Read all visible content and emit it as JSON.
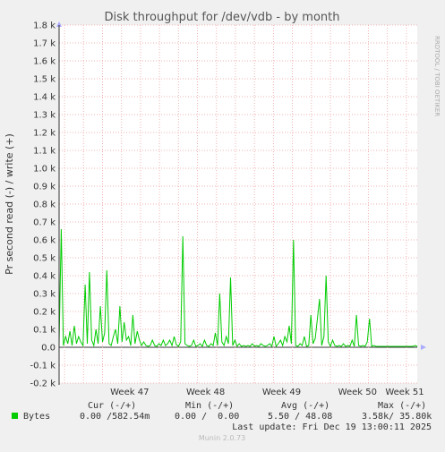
{
  "chart_data": {
    "type": "line",
    "title": "Disk throughput for /dev/vdb - by month",
    "ylabel": "Pr second read (-) / write (+)",
    "ylim": [
      -200,
      1800
    ],
    "y_ticks": [
      {
        "v": -200,
        "label": "-0.2 k"
      },
      {
        "v": -100,
        "label": "-0.1 k"
      },
      {
        "v": 0,
        "label": "0.0"
      },
      {
        "v": 100,
        "label": "0.1 k"
      },
      {
        "v": 200,
        "label": "0.2 k"
      },
      {
        "v": 300,
        "label": "0.3 k"
      },
      {
        "v": 400,
        "label": "0.4 k"
      },
      {
        "v": 500,
        "label": "0.5 k"
      },
      {
        "v": 600,
        "label": "0.6 k"
      },
      {
        "v": 700,
        "label": "0.7 k"
      },
      {
        "v": 800,
        "label": "0.8 k"
      },
      {
        "v": 900,
        "label": "0.9 k"
      },
      {
        "v": 1000,
        "label": "1.0 k"
      },
      {
        "v": 1100,
        "label": "1.1 k"
      },
      {
        "v": 1200,
        "label": "1.2 k"
      },
      {
        "v": 1300,
        "label": "1.3 k"
      },
      {
        "v": 1400,
        "label": "1.4 k"
      },
      {
        "v": 1500,
        "label": "1.5 k"
      },
      {
        "v": 1600,
        "label": "1.6 k"
      },
      {
        "v": 1700,
        "label": "1.7 k"
      },
      {
        "v": 1800,
        "label": "1.8 k"
      }
    ],
    "xlim": [
      0,
      33
    ],
    "x_ticks": [
      {
        "v": 6.5,
        "label": "Week 47"
      },
      {
        "v": 13.5,
        "label": "Week 48"
      },
      {
        "v": 20.5,
        "label": "Week 49"
      },
      {
        "v": 27.5,
        "label": "Week 50"
      },
      {
        "v": 34.5,
        "label": "Week 51"
      }
    ],
    "grid": true,
    "series": [
      {
        "name": "Bytes",
        "color": "#00cc00",
        "write": [
          [
            0.0,
            20
          ],
          [
            0.2,
            660
          ],
          [
            0.4,
            10
          ],
          [
            0.6,
            60
          ],
          [
            0.8,
            20
          ],
          [
            1.0,
            90
          ],
          [
            1.2,
            10
          ],
          [
            1.4,
            120
          ],
          [
            1.6,
            20
          ],
          [
            1.8,
            60
          ],
          [
            2.0,
            30
          ],
          [
            2.2,
            10
          ],
          [
            2.4,
            350
          ],
          [
            2.6,
            20
          ],
          [
            2.8,
            420
          ],
          [
            3.0,
            40
          ],
          [
            3.2,
            10
          ],
          [
            3.4,
            100
          ],
          [
            3.6,
            20
          ],
          [
            3.8,
            230
          ],
          [
            4.0,
            30
          ],
          [
            4.2,
            80
          ],
          [
            4.4,
            430
          ],
          [
            4.6,
            20
          ],
          [
            4.8,
            10
          ],
          [
            5.0,
            60
          ],
          [
            5.2,
            100
          ],
          [
            5.4,
            20
          ],
          [
            5.6,
            230
          ],
          [
            5.8,
            30
          ],
          [
            6.0,
            140
          ],
          [
            6.2,
            40
          ],
          [
            6.4,
            60
          ],
          [
            6.6,
            10
          ],
          [
            6.8,
            180
          ],
          [
            7.0,
            20
          ],
          [
            7.2,
            90
          ],
          [
            7.4,
            40
          ],
          [
            7.6,
            10
          ],
          [
            7.8,
            30
          ],
          [
            8.0,
            10
          ],
          [
            8.2,
            5
          ],
          [
            8.4,
            10
          ],
          [
            8.6,
            40
          ],
          [
            8.8,
            10
          ],
          [
            9.0,
            5
          ],
          [
            9.2,
            20
          ],
          [
            9.4,
            10
          ],
          [
            9.6,
            40
          ],
          [
            9.8,
            10
          ],
          [
            10.0,
            20
          ],
          [
            10.2,
            40
          ],
          [
            10.4,
            10
          ],
          [
            10.6,
            60
          ],
          [
            10.8,
            15
          ],
          [
            11.0,
            5
          ],
          [
            11.2,
            30
          ],
          [
            11.4,
            620
          ],
          [
            11.6,
            20
          ],
          [
            11.8,
            10
          ],
          [
            12.0,
            5
          ],
          [
            12.2,
            10
          ],
          [
            12.4,
            40
          ],
          [
            12.6,
            5
          ],
          [
            12.8,
            10
          ],
          [
            13.0,
            20
          ],
          [
            13.2,
            5
          ],
          [
            13.4,
            40
          ],
          [
            13.6,
            10
          ],
          [
            13.8,
            5
          ],
          [
            14.0,
            20
          ],
          [
            14.2,
            10
          ],
          [
            14.4,
            80
          ],
          [
            14.6,
            10
          ],
          [
            14.8,
            300
          ],
          [
            15.0,
            30
          ],
          [
            15.2,
            10
          ],
          [
            15.4,
            60
          ],
          [
            15.6,
            20
          ],
          [
            15.8,
            390
          ],
          [
            16.0,
            10
          ],
          [
            16.2,
            40
          ],
          [
            16.4,
            5
          ],
          [
            16.6,
            20
          ],
          [
            16.8,
            5
          ],
          [
            17.0,
            10
          ],
          [
            17.2,
            5
          ],
          [
            17.4,
            10
          ],
          [
            17.6,
            5
          ],
          [
            17.8,
            20
          ],
          [
            18.0,
            5
          ],
          [
            18.2,
            10
          ],
          [
            18.4,
            5
          ],
          [
            18.6,
            20
          ],
          [
            18.8,
            10
          ],
          [
            19.0,
            5
          ],
          [
            19.2,
            10
          ],
          [
            19.4,
            20
          ],
          [
            19.6,
            5
          ],
          [
            19.8,
            60
          ],
          [
            20.0,
            5
          ],
          [
            20.2,
            20
          ],
          [
            20.4,
            40
          ],
          [
            20.6,
            10
          ],
          [
            20.8,
            60
          ],
          [
            21.0,
            30
          ],
          [
            21.2,
            120
          ],
          [
            21.4,
            20
          ],
          [
            21.6,
            600
          ],
          [
            21.8,
            10
          ],
          [
            22.0,
            5
          ],
          [
            22.2,
            20
          ],
          [
            22.4,
            10
          ],
          [
            22.6,
            60
          ],
          [
            22.8,
            5
          ],
          [
            23.0,
            10
          ],
          [
            23.2,
            180
          ],
          [
            23.4,
            20
          ],
          [
            23.6,
            50
          ],
          [
            23.8,
            160
          ],
          [
            24.0,
            270
          ],
          [
            24.2,
            10
          ],
          [
            24.4,
            60
          ],
          [
            24.6,
            400
          ],
          [
            24.8,
            30
          ],
          [
            25.0,
            5
          ],
          [
            25.2,
            40
          ],
          [
            25.4,
            10
          ],
          [
            25.6,
            5
          ],
          [
            25.8,
            10
          ],
          [
            26.0,
            5
          ],
          [
            26.2,
            20
          ],
          [
            26.4,
            5
          ],
          [
            26.6,
            10
          ],
          [
            26.8,
            5
          ],
          [
            27.0,
            40
          ],
          [
            27.2,
            5
          ],
          [
            27.4,
            180
          ],
          [
            27.6,
            10
          ],
          [
            27.8,
            5
          ],
          [
            28.0,
            10
          ],
          [
            28.2,
            5
          ],
          [
            28.4,
            30
          ],
          [
            28.6,
            160
          ],
          [
            28.8,
            5
          ],
          [
            29.0,
            10
          ],
          [
            29.2,
            5
          ],
          [
            29.4,
            5
          ],
          [
            29.6,
            5
          ],
          [
            29.8,
            5
          ],
          [
            30.0,
            5
          ],
          [
            30.2,
            5
          ],
          [
            30.4,
            5
          ],
          [
            30.6,
            5
          ],
          [
            30.8,
            5
          ],
          [
            31.0,
            5
          ],
          [
            31.2,
            5
          ],
          [
            31.4,
            5
          ],
          [
            31.6,
            5
          ],
          [
            31.8,
            5
          ],
          [
            32.0,
            5
          ],
          [
            32.2,
            5
          ],
          [
            32.4,
            5
          ],
          [
            32.6,
            5
          ],
          [
            32.8,
            10
          ],
          [
            33.0,
            5
          ],
          [
            33.2,
            5
          ],
          [
            33.4,
            5
          ],
          [
            33.6,
            5
          ],
          [
            33.8,
            5
          ],
          [
            34.0,
            5
          ],
          [
            34.2,
            5
          ],
          [
            34.4,
            5
          ],
          [
            34.6,
            5
          ],
          [
            34.8,
            5
          ],
          [
            35.0,
            5
          ],
          [
            35.2,
            5
          ],
          [
            35.4,
            5
          ],
          [
            35.6,
            5
          ],
          [
            35.8,
            5
          ],
          [
            36.0,
            5
          ],
          [
            36.2,
            5
          ],
          [
            36.4,
            5
          ],
          [
            36.6,
            5
          ],
          [
            36.8,
            5
          ],
          [
            37.0,
            5
          ],
          [
            37.2,
            5
          ],
          [
            37.4,
            5
          ],
          [
            37.6,
            5
          ],
          [
            37.8,
            5
          ],
          [
            38.0,
            5
          ],
          [
            38.2,
            5
          ],
          [
            38.4,
            5
          ],
          [
            38.6,
            5
          ],
          [
            38.8,
            5
          ],
          [
            39.0,
            5
          ],
          [
            39.2,
            5
          ],
          [
            39.4,
            5
          ],
          [
            39.6,
            5
          ],
          [
            39.8,
            5
          ],
          [
            40.0,
            5
          ],
          [
            40.2,
            5
          ],
          [
            40.4,
            5
          ],
          [
            40.6,
            5
          ],
          [
            40.8,
            5
          ],
          [
            41.0,
            5
          ],
          [
            41.2,
            5
          ],
          [
            41.4,
            5
          ],
          [
            41.6,
            5
          ],
          [
            41.8,
            5
          ],
          [
            42.0,
            5
          ],
          [
            42.2,
            5
          ],
          [
            42.4,
            5
          ],
          [
            42.6,
            5
          ],
          [
            42.8,
            5
          ],
          [
            43.0,
            5
          ],
          [
            43.2,
            5
          ],
          [
            43.4,
            5
          ],
          [
            43.6,
            5
          ],
          [
            43.8,
            5
          ],
          [
            44.0,
            5
          ],
          [
            44.2,
            5
          ],
          [
            44.4,
            5
          ],
          [
            44.6,
            5
          ],
          [
            44.8,
            5
          ],
          [
            45.0,
            5
          ],
          [
            45.2,
            5
          ],
          [
            45.4,
            5
          ],
          [
            45.6,
            5
          ],
          [
            45.8,
            5
          ],
          [
            46.0,
            5
          ],
          [
            46.2,
            5
          ],
          [
            46.4,
            5
          ],
          [
            46.6,
            5
          ],
          [
            46.8,
            5
          ],
          [
            47.0,
            5
          ],
          [
            47.2,
            5
          ],
          [
            47.4,
            5
          ],
          [
            47.6,
            5
          ],
          [
            47.8,
            5
          ],
          [
            48.0,
            5
          ],
          [
            48.2,
            5
          ],
          [
            48.4,
            5
          ],
          [
            48.6,
            5
          ],
          [
            48.8,
            5
          ],
          [
            49.0,
            5
          ],
          [
            49.2,
            5
          ],
          [
            49.4,
            5
          ],
          [
            49.6,
            5
          ],
          [
            49.8,
            5
          ]
        ],
        "read": []
      }
    ]
  },
  "legend": {
    "headers": [
      "Cur (-/+)",
      "Min (-/+)",
      "Avg (-/+)",
      "Max (-/+)"
    ],
    "rows": [
      {
        "name": "Bytes",
        "color": "#00cc00",
        "cur": "0.00 /582.54m",
        "min": "0.00 /  0.00",
        "avg": "5.50 / 48.08",
        "max": "3.58k/ 35.80k"
      }
    ]
  },
  "last_update": "Last update: Fri Dec 19 13:00:11 2025",
  "side_label": "RRDTOOL / TOBI OETIKER",
  "footer": "Munin 2.0.73"
}
